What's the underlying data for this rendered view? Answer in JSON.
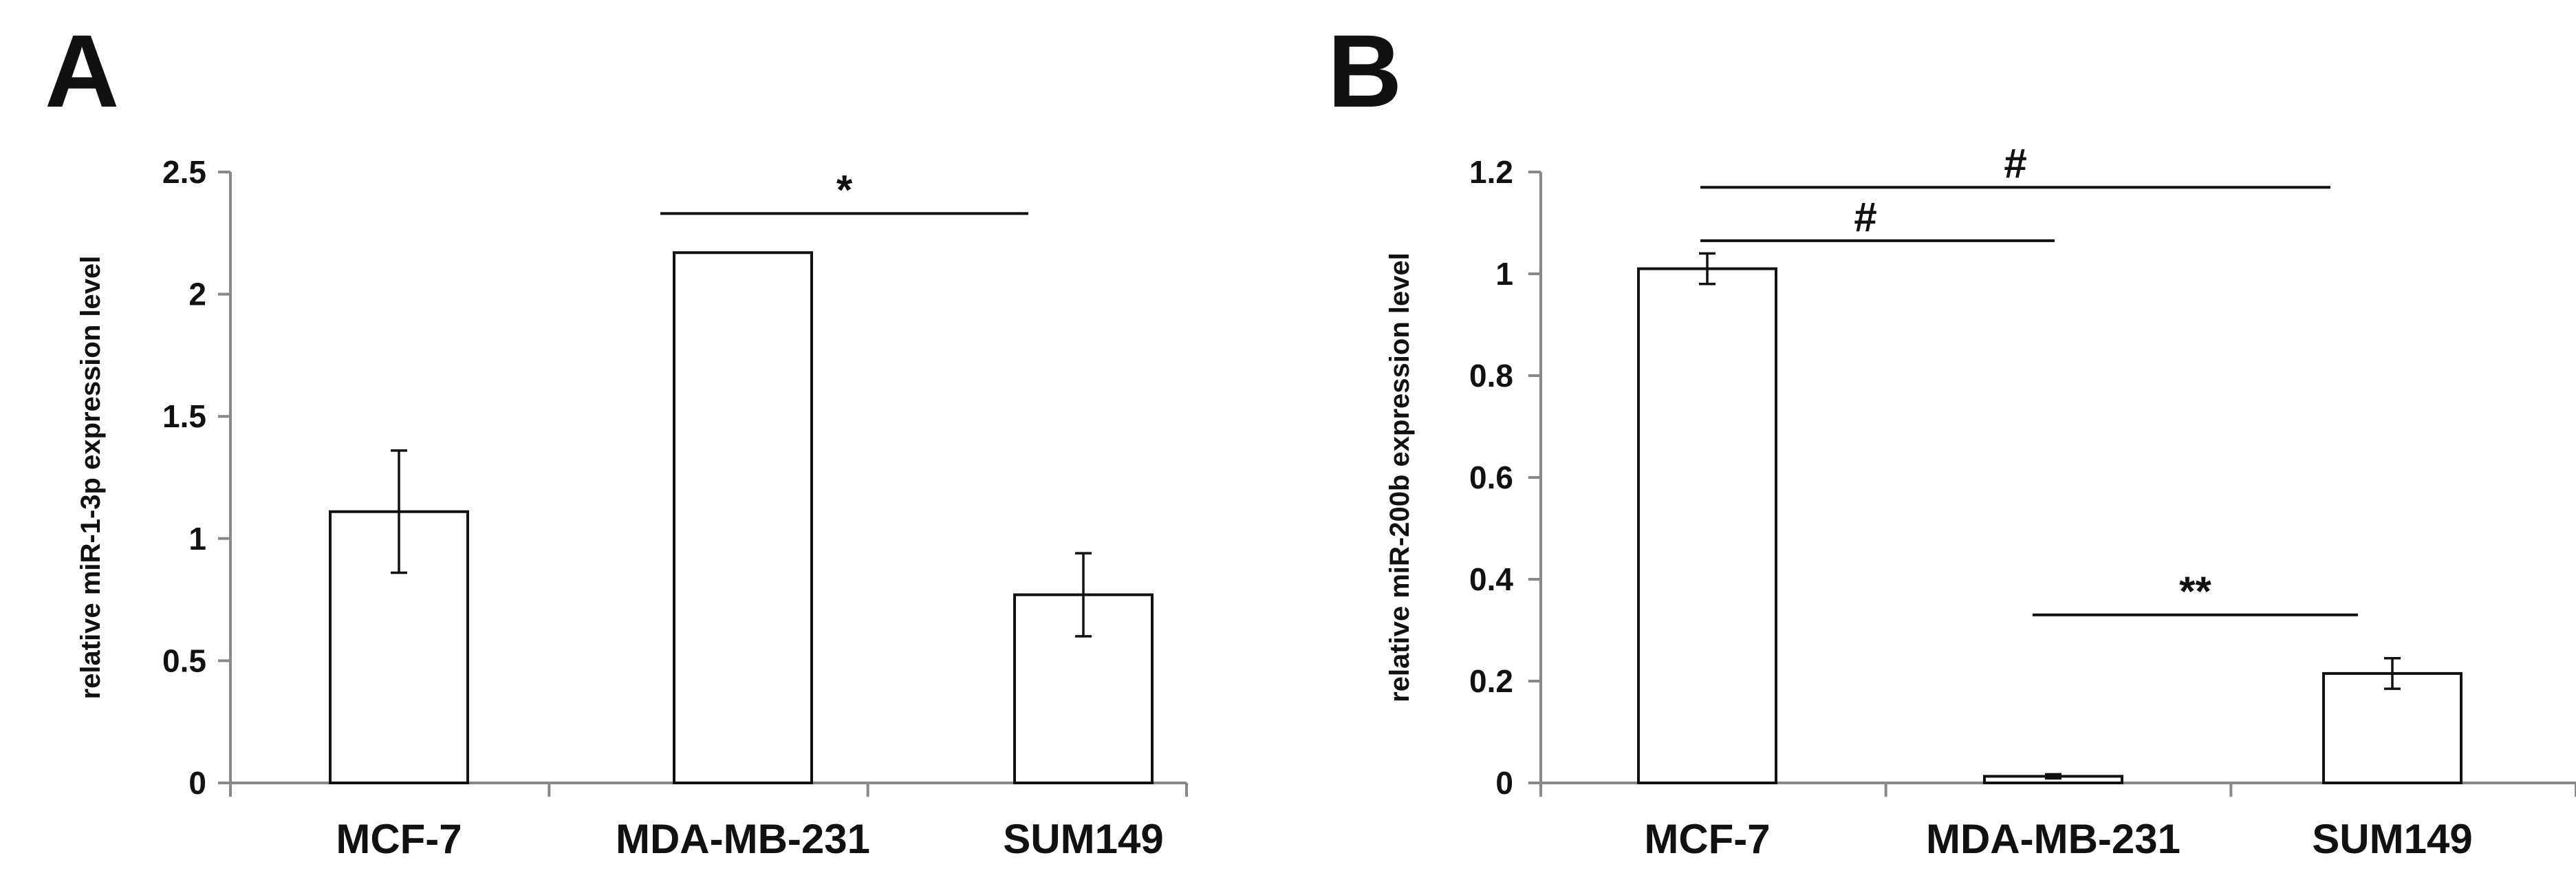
{
  "chart_data": [
    {
      "panel": "A",
      "type": "bar",
      "categories": [
        "MCF-7",
        "MDA-MB-231",
        "SUM149"
      ],
      "values": [
        1.11,
        2.17,
        0.77
      ],
      "errors": [
        0.25,
        0.0,
        0.17
      ],
      "ylabel": "relative miR-1-3p expression level",
      "ylim": [
        0,
        2.5
      ],
      "yticks": [
        "0",
        "0.5",
        "1",
        "1.5",
        "2",
        "2.5"
      ],
      "ytick_values": [
        0,
        0.5,
        1,
        1.5,
        2,
        2.5
      ],
      "significance": [
        {
          "from": 1,
          "to": 2,
          "label": "*",
          "y": 2.33
        }
      ]
    },
    {
      "panel": "B",
      "type": "bar",
      "categories": [
        "MCF-7",
        "MDA-MB-231",
        "SUM149"
      ],
      "values": [
        1.01,
        0.013,
        0.215
      ],
      "errors": [
        0.03,
        0.004,
        0.03
      ],
      "ylabel": "relative miR-200b expression level",
      "ylim": [
        0,
        1.2
      ],
      "yticks": [
        "0",
        "0.2",
        "0.4",
        "0.6",
        "0.8",
        "1",
        "1.2"
      ],
      "ytick_values": [
        0,
        0.2,
        0.4,
        0.6,
        0.8,
        1,
        1.2
      ],
      "significance": [
        {
          "from": 0,
          "to": 2,
          "label": "#",
          "y": 1.17
        },
        {
          "from": 0,
          "to": 1,
          "label": "#",
          "y": 1.065
        },
        {
          "from": 1,
          "to": 2,
          "label": "**",
          "y": 0.33
        }
      ]
    }
  ]
}
